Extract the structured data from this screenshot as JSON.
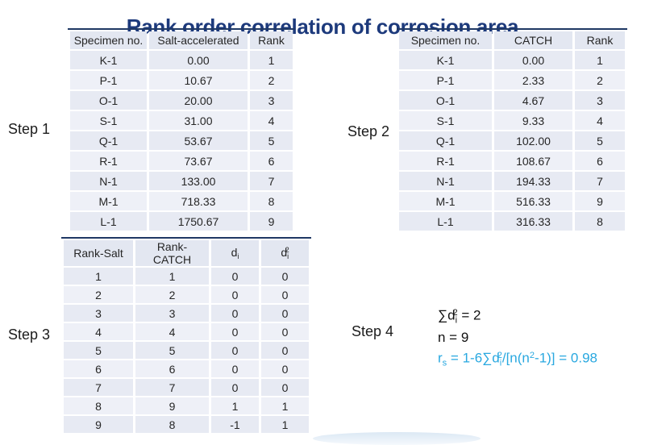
{
  "title": "Rank order correlation of corrosion area",
  "colors": {
    "title": "#1d3a7c",
    "table_top_border": "#1f3864",
    "header_bg": "#e3e7f1",
    "cell_odd": "#e7eaf3",
    "cell_even": "#eef0f7",
    "text": "#262626",
    "formula_highlight": "#29a8e0"
  },
  "step1": {
    "label": "Step 1",
    "table": {
      "headers": [
        [
          {
            "t": "text",
            "v": "Specimen no."
          }
        ],
        [
          {
            "t": "text",
            "v": "Salt-accelerated"
          }
        ],
        [
          {
            "t": "text",
            "v": "Rank"
          }
        ]
      ],
      "rows": [
        [
          "K-1",
          "0.00",
          "1"
        ],
        [
          "P-1",
          "10.67",
          "2"
        ],
        [
          "O-1",
          "20.00",
          "3"
        ],
        [
          "S-1",
          "31.00",
          "4"
        ],
        [
          "Q-1",
          "53.67",
          "5"
        ],
        [
          "R-1",
          "73.67",
          "6"
        ],
        [
          "N-1",
          "133.00",
          "7"
        ],
        [
          "M-1",
          "718.33",
          "8"
        ],
        [
          "L-1",
          "1750.67",
          "9"
        ]
      ]
    }
  },
  "step2": {
    "label": "Step 2",
    "table": {
      "headers": [
        [
          {
            "t": "text",
            "v": "Specimen no."
          }
        ],
        [
          {
            "t": "text",
            "v": "CATCH"
          }
        ],
        [
          {
            "t": "text",
            "v": "Rank"
          }
        ]
      ],
      "rows": [
        [
          "K-1",
          "0.00",
          "1"
        ],
        [
          "P-1",
          "2.33",
          "2"
        ],
        [
          "O-1",
          "4.67",
          "3"
        ],
        [
          "S-1",
          "9.33",
          "4"
        ],
        [
          "Q-1",
          "102.00",
          "5"
        ],
        [
          "R-1",
          "108.67",
          "6"
        ],
        [
          "N-1",
          "194.33",
          "7"
        ],
        [
          "M-1",
          "516.33",
          "9"
        ],
        [
          "L-1",
          "316.33",
          "8"
        ]
      ]
    }
  },
  "step3": {
    "label": "Step 3",
    "table": {
      "headers": [
        [
          {
            "t": "text",
            "v": "Rank-Salt"
          }
        ],
        [
          {
            "t": "text",
            "v": "Rank-CATCH"
          }
        ],
        [
          {
            "t": "text",
            "v": "d"
          },
          {
            "t": "sub",
            "v": "i"
          }
        ],
        [
          {
            "t": "text",
            "v": "d"
          },
          {
            "t": "sub",
            "v": "i"
          },
          {
            "t": "sup",
            "v": "2"
          }
        ]
      ],
      "rows": [
        [
          "1",
          "1",
          "0",
          "0"
        ],
        [
          "2",
          "2",
          "0",
          "0"
        ],
        [
          "3",
          "3",
          "0",
          "0"
        ],
        [
          "4",
          "4",
          "0",
          "0"
        ],
        [
          "5",
          "5",
          "0",
          "0"
        ],
        [
          "6",
          "6",
          "0",
          "0"
        ],
        [
          "7",
          "7",
          "0",
          "0"
        ],
        [
          "8",
          "9",
          "1",
          "1"
        ],
        [
          "9",
          "8",
          "-1",
          "1"
        ]
      ]
    }
  },
  "step4": {
    "label": "Step 4",
    "lines": [
      {
        "highlight": false,
        "parts": [
          {
            "t": "text",
            "v": "∑d"
          },
          {
            "t": "sub",
            "v": "i"
          },
          {
            "t": "sup",
            "v": "2"
          },
          {
            "t": "text",
            "v": " = 2"
          }
        ]
      },
      {
        "highlight": false,
        "parts": [
          {
            "t": "text",
            "v": "n = 9"
          }
        ]
      },
      {
        "highlight": true,
        "parts": [
          {
            "t": "text",
            "v": "r"
          },
          {
            "t": "sub",
            "v": "s"
          },
          {
            "t": "text",
            "v": " = 1-6∑d"
          },
          {
            "t": "sub",
            "v": "i"
          },
          {
            "t": "sup",
            "v": "2"
          },
          {
            "t": "text",
            "v": "/[n(n"
          },
          {
            "t": "sup",
            "v": "2"
          },
          {
            "t": "text",
            "v": "-1)] = 0.98"
          }
        ]
      }
    ]
  }
}
